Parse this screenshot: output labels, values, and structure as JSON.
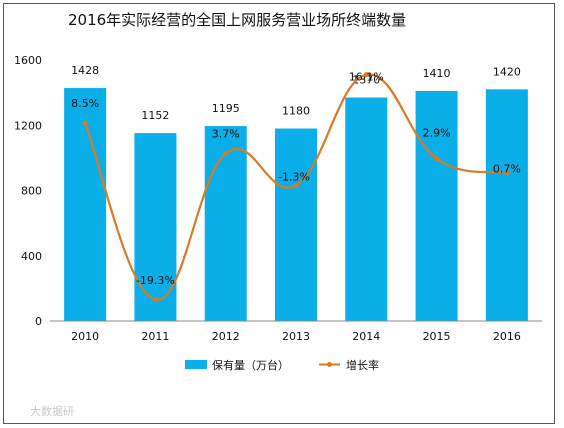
{
  "chart_data": {
    "type": "bar",
    "title": "2016年实际经营的全国上网服务营业场所终端数量",
    "categories": [
      "2010",
      "2011",
      "2012",
      "2013",
      "2014",
      "2015",
      "2016"
    ],
    "series": [
      {
        "name": "保有量（万台）",
        "type": "bar",
        "values": [
          1428,
          1152,
          1195,
          1180,
          1370,
          1410,
          1420
        ],
        "labels": [
          "1428",
          "1152",
          "1195",
          "1180",
          "1370",
          "1410",
          "1420"
        ],
        "color": "#0aaee8"
      },
      {
        "name": "增长率",
        "type": "line",
        "smooth": true,
        "values": [
          8.5,
          -19.3,
          3.7,
          -1.3,
          16.1,
          2.9,
          0.7
        ],
        "labels": [
          "8.5%",
          "-19.3%",
          "3.7%",
          "-1.3%",
          "16.1%",
          "2.9%",
          "0.7%"
        ],
        "color": "#d97a26"
      }
    ],
    "yticks": [
      "0",
      "400",
      "800",
      "1200",
      "1600"
    ],
    "ylim": [
      0,
      1600
    ],
    "grid": false,
    "legend": "bottom",
    "watermark": "大数据研"
  }
}
